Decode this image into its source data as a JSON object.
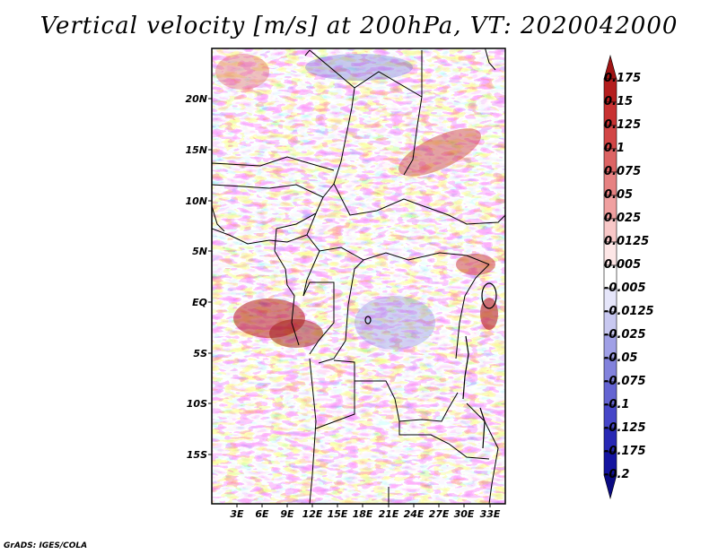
{
  "title": "Vertical velocity [m/s] at 200hPa, VT: 2020042000",
  "credit": "GrADS: IGES/COLA",
  "map": {
    "variable": "Vertical velocity",
    "units": "m/s",
    "level": "200hPa",
    "valid_time": "2020042000",
    "lat_labels": [
      "20N",
      "15N",
      "10N",
      "5N",
      "EQ",
      "5S",
      "10S",
      "15S"
    ],
    "lon_labels": [
      "3E",
      "6E",
      "9E",
      "12E",
      "15E",
      "18E",
      "21E",
      "24E",
      "27E",
      "30E",
      "33E"
    ]
  },
  "colorbar": {
    "labels": [
      "0.175",
      "0.15",
      "0.125",
      "0.1",
      "0.075",
      "0.05",
      "0.025",
      "0.0125",
      "0.005",
      "-0.005",
      "-0.0125",
      "-0.025",
      "-0.05",
      "-0.075",
      "-0.1",
      "-0.125",
      "-0.175",
      "-0.2"
    ],
    "colors": [
      "#a01414",
      "#b41e1e",
      "#c83232",
      "#d24646",
      "#dc6464",
      "#e68282",
      "#f0a0a0",
      "#f8c8c8",
      "#fde6e6",
      "#ffffff",
      "#e6e6fa",
      "#c8c8f0",
      "#a0a0e6",
      "#8282dc",
      "#6464d2",
      "#4646c8",
      "#2828b4",
      "#1414a0",
      "#0a0a82"
    ]
  }
}
